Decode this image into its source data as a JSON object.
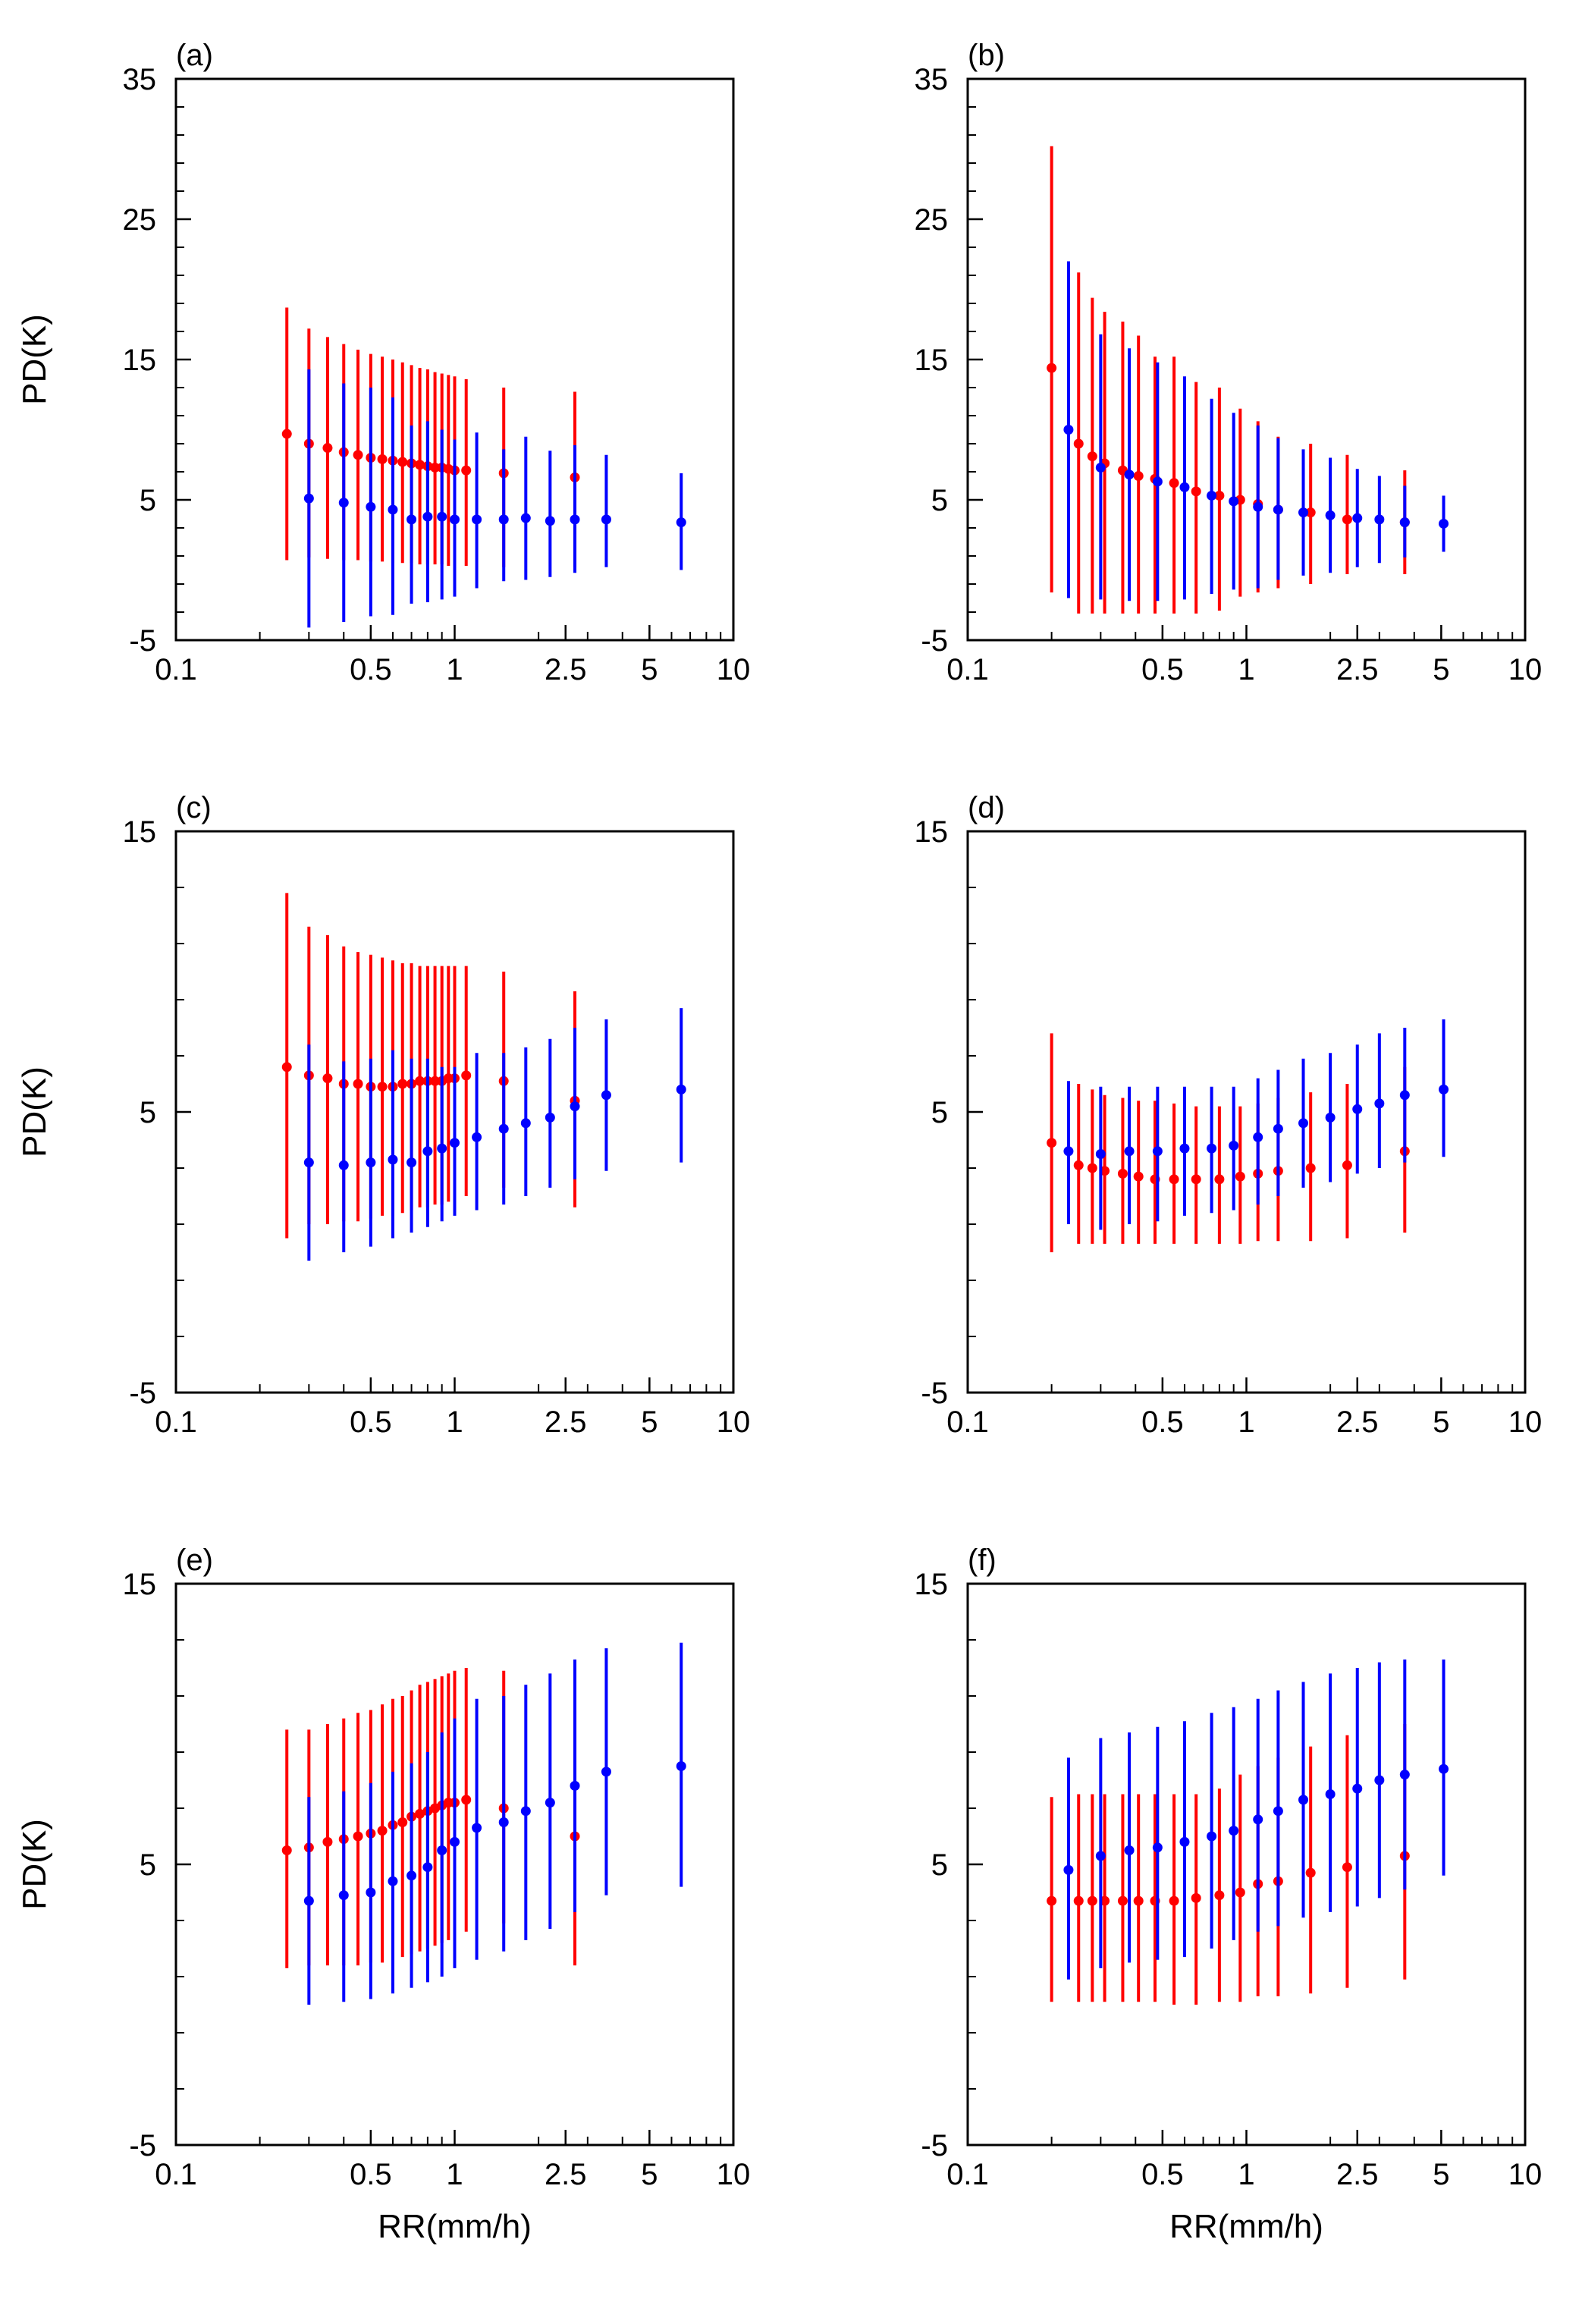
{
  "chart_data": [
    {
      "type": "errorbar",
      "panel_label": "(a)",
      "ylabel": "PD(K)",
      "xlabel": "",
      "xscale": "log",
      "xlim": [
        0.1,
        10
      ],
      "ylim": [
        -5,
        35
      ],
      "xtick_labels": [
        "0.1",
        "0.5",
        "1",
        "2.5",
        "5",
        "10"
      ],
      "ytick_labels": [
        "-5",
        "5",
        "15",
        "25",
        "35"
      ],
      "series": [
        {
          "name": "red",
          "color": "#ff0000",
          "x": [
            0.25,
            0.3,
            0.35,
            0.4,
            0.45,
            0.5,
            0.55,
            0.6,
            0.65,
            0.7,
            0.75,
            0.8,
            0.85,
            0.9,
            0.95,
            1.0,
            1.1,
            1.5,
            2.7
          ],
          "y": [
            9.7,
            9.0,
            8.7,
            8.4,
            8.2,
            8.0,
            7.9,
            7.8,
            7.7,
            7.6,
            7.5,
            7.4,
            7.3,
            7.3,
            7.2,
            7.1,
            7.1,
            6.9,
            6.6
          ],
          "lo": [
            0.7,
            0.9,
            0.8,
            0.7,
            0.7,
            0.6,
            0.6,
            0.5,
            0.5,
            0.5,
            0.4,
            0.4,
            0.4,
            0.4,
            0.3,
            0.3,
            0.3,
            0.2,
            0.2
          ],
          "hi": [
            18.7,
            17.2,
            16.6,
            16.1,
            15.7,
            15.4,
            15.2,
            15.0,
            14.8,
            14.6,
            14.4,
            14.3,
            14.1,
            14.0,
            13.9,
            13.8,
            13.6,
            13.0,
            12.7
          ]
        },
        {
          "name": "blue",
          "color": "#0000ff",
          "x": [
            0.3,
            0.4,
            0.5,
            0.6,
            0.7,
            0.8,
            0.9,
            1.0,
            1.2,
            1.5,
            1.8,
            2.2,
            2.7,
            3.5,
            6.5
          ],
          "y": [
            5.1,
            4.8,
            4.5,
            4.3,
            3.6,
            3.8,
            3.8,
            3.6,
            3.6,
            3.6,
            3.7,
            3.5,
            3.6,
            3.6,
            3.4
          ],
          "lo": [
            -4.1,
            -3.7,
            -3.3,
            -3.2,
            -2.4,
            -2.3,
            -2.1,
            -1.9,
            -1.3,
            -0.8,
            -0.7,
            -0.5,
            -0.2,
            0.2,
            0.0
          ],
          "hi": [
            14.3,
            13.3,
            13.0,
            12.3,
            10.3,
            10.6,
            10.0,
            9.3,
            9.8,
            8.6,
            9.5,
            8.5,
            8.9,
            8.2,
            6.9
          ]
        }
      ]
    },
    {
      "type": "errorbar",
      "panel_label": "(b)",
      "ylabel": "",
      "xlabel": "",
      "xscale": "log",
      "xlim": [
        0.1,
        10
      ],
      "ylim": [
        -5,
        35
      ],
      "xtick_labels": [
        "0.1",
        "0.5",
        "1",
        "2.5",
        "5",
        "10"
      ],
      "ytick_labels": [
        "-5",
        "5",
        "15",
        "25",
        "35"
      ],
      "series": [
        {
          "name": "red",
          "color": "#ff0000",
          "x": [
            0.2,
            0.25,
            0.28,
            0.31,
            0.36,
            0.41,
            0.47,
            0.55,
            0.66,
            0.8,
            0.95,
            1.1,
            1.3,
            1.7,
            2.3,
            3.7
          ],
          "y": [
            14.4,
            9.0,
            8.1,
            7.6,
            7.1,
            6.7,
            6.5,
            6.2,
            5.6,
            5.3,
            5.0,
            4.7,
            4.3,
            4.1,
            3.6,
            3.4
          ],
          "lo": [
            -1.6,
            -3.1,
            -3.1,
            -3.1,
            -3.1,
            -3.1,
            -3.1,
            -3.1,
            -3.1,
            -2.9,
            -1.9,
            -1.6,
            -1.3,
            -1.0,
            -0.3,
            -0.3
          ],
          "hi": [
            30.2,
            21.2,
            19.4,
            18.4,
            17.7,
            16.7,
            15.2,
            15.2,
            13.4,
            13.0,
            11.5,
            10.6,
            9.5,
            9.0,
            8.2,
            7.1
          ]
        },
        {
          "name": "blue",
          "color": "#0000ff",
          "x": [
            0.23,
            0.3,
            0.38,
            0.48,
            0.6,
            0.75,
            0.9,
            1.1,
            1.3,
            1.6,
            2.0,
            2.5,
            3.0,
            3.7,
            5.1
          ],
          "y": [
            10.0,
            7.3,
            6.8,
            6.3,
            5.9,
            5.3,
            4.9,
            4.5,
            4.3,
            4.1,
            3.9,
            3.7,
            3.6,
            3.4,
            3.3
          ],
          "lo": [
            -2.0,
            -2.1,
            -2.2,
            -2.2,
            -2.1,
            -1.7,
            -1.4,
            -1.3,
            -0.7,
            -0.4,
            -0.2,
            0.2,
            0.5,
            0.9,
            1.3
          ],
          "hi": [
            22.0,
            16.8,
            15.8,
            14.8,
            13.8,
            12.2,
            11.2,
            10.3,
            9.4,
            8.6,
            8.0,
            7.2,
            6.7,
            6.0,
            5.3
          ]
        }
      ]
    },
    {
      "type": "errorbar",
      "panel_label": "(c)",
      "ylabel": "PD(K)",
      "xlabel": "",
      "xscale": "log",
      "xlim": [
        0.1,
        10
      ],
      "ylim": [
        -5,
        15
      ],
      "xtick_labels": [
        "0.1",
        "0.5",
        "1",
        "2.5",
        "5",
        "10"
      ],
      "ytick_labels": [
        "-5",
        "5",
        "15"
      ],
      "series": [
        {
          "name": "red",
          "color": "#ff0000",
          "x": [
            0.25,
            0.3,
            0.35,
            0.4,
            0.45,
            0.5,
            0.55,
            0.6,
            0.65,
            0.7,
            0.75,
            0.8,
            0.85,
            0.9,
            0.95,
            1.0,
            1.1,
            1.5,
            2.7
          ],
          "y": [
            6.6,
            6.3,
            6.2,
            6.0,
            6.0,
            5.9,
            5.9,
            5.9,
            6.0,
            6.0,
            6.1,
            6.1,
            6.1,
            6.1,
            6.2,
            6.2,
            6.3,
            6.1,
            5.4
          ],
          "lo": [
            0.5,
            1.0,
            1.0,
            1.1,
            1.1,
            1.2,
            1.3,
            1.3,
            1.4,
            1.5,
            1.6,
            1.6,
            1.7,
            1.7,
            1.8,
            1.8,
            2.0,
            2.3,
            1.6
          ],
          "hi": [
            12.8,
            11.6,
            11.3,
            10.9,
            10.7,
            10.6,
            10.5,
            10.4,
            10.3,
            10.3,
            10.2,
            10.2,
            10.2,
            10.2,
            10.2,
            10.2,
            10.2,
            10.0,
            9.3
          ]
        },
        {
          "name": "blue",
          "color": "#0000ff",
          "x": [
            0.3,
            0.4,
            0.5,
            0.6,
            0.7,
            0.8,
            0.9,
            1.0,
            1.2,
            1.5,
            1.8,
            2.2,
            2.7,
            3.5,
            6.5
          ],
          "y": [
            3.2,
            3.1,
            3.2,
            3.3,
            3.2,
            3.6,
            3.7,
            3.9,
            4.1,
            4.4,
            4.6,
            4.8,
            5.2,
            5.6,
            5.8
          ],
          "lo": [
            -0.3,
            0.0,
            0.2,
            0.5,
            0.7,
            0.9,
            1.1,
            1.3,
            1.5,
            1.7,
            2.0,
            2.3,
            2.6,
            2.9,
            3.2
          ],
          "hi": [
            7.4,
            6.8,
            6.9,
            7.2,
            6.9,
            6.9,
            6.6,
            6.6,
            7.1,
            7.1,
            7.3,
            7.6,
            8.0,
            8.3,
            8.7
          ]
        }
      ]
    },
    {
      "type": "errorbar",
      "panel_label": "(d)",
      "ylabel": "",
      "xlabel": "",
      "xscale": "log",
      "xlim": [
        0.1,
        10
      ],
      "ylim": [
        -5,
        15
      ],
      "xtick_labels": [
        "0.1",
        "0.5",
        "1",
        "2.5",
        "5",
        "10"
      ],
      "ytick_labels": [
        "-5",
        "5",
        "15"
      ],
      "series": [
        {
          "name": "red",
          "color": "#ff0000",
          "x": [
            0.2,
            0.25,
            0.28,
            0.31,
            0.36,
            0.41,
            0.47,
            0.55,
            0.66,
            0.8,
            0.95,
            1.1,
            1.3,
            1.7,
            2.3,
            3.7
          ],
          "y": [
            3.9,
            3.1,
            3.0,
            2.9,
            2.8,
            2.7,
            2.6,
            2.6,
            2.6,
            2.6,
            2.7,
            2.8,
            2.9,
            3.0,
            3.1,
            3.6
          ],
          "lo": [
            0.0,
            0.3,
            0.3,
            0.3,
            0.3,
            0.3,
            0.3,
            0.3,
            0.3,
            0.3,
            0.3,
            0.4,
            0.4,
            0.4,
            0.5,
            0.7
          ],
          "hi": [
            7.8,
            6.0,
            5.8,
            5.6,
            5.5,
            5.4,
            5.4,
            5.3,
            5.2,
            5.2,
            5.2,
            5.3,
            5.5,
            5.7,
            6.0,
            6.6
          ]
        },
        {
          "name": "blue",
          "color": "#0000ff",
          "x": [
            0.23,
            0.3,
            0.38,
            0.48,
            0.6,
            0.75,
            0.9,
            1.1,
            1.3,
            1.6,
            2.0,
            2.5,
            3.0,
            3.7,
            5.1
          ],
          "y": [
            3.6,
            3.5,
            3.6,
            3.6,
            3.7,
            3.7,
            3.8,
            4.1,
            4.4,
            4.6,
            4.8,
            5.1,
            5.3,
            5.6,
            5.8
          ],
          "lo": [
            1.0,
            0.8,
            1.0,
            1.1,
            1.3,
            1.4,
            1.5,
            1.7,
            2.0,
            2.3,
            2.5,
            2.8,
            3.0,
            3.2,
            3.4
          ],
          "hi": [
            6.1,
            5.9,
            5.9,
            5.9,
            5.9,
            5.9,
            5.9,
            6.2,
            6.5,
            6.9,
            7.1,
            7.4,
            7.8,
            8.0,
            8.3
          ]
        }
      ]
    },
    {
      "type": "errorbar",
      "panel_label": "(e)",
      "ylabel": "PD(K)",
      "xlabel": "RR(mm/h)",
      "xscale": "log",
      "xlim": [
        0.1,
        10
      ],
      "ylim": [
        -5,
        15
      ],
      "xtick_labels": [
        "0.1",
        "0.5",
        "1",
        "2.5",
        "5",
        "10"
      ],
      "ytick_labels": [
        "-5",
        "5",
        "15"
      ],
      "series": [
        {
          "name": "red",
          "color": "#ff0000",
          "x": [
            0.25,
            0.3,
            0.35,
            0.4,
            0.45,
            0.5,
            0.55,
            0.6,
            0.65,
            0.7,
            0.75,
            0.8,
            0.85,
            0.9,
            0.95,
            1.0,
            1.1,
            1.5,
            2.7
          ],
          "y": [
            5.5,
            5.6,
            5.8,
            5.9,
            6.0,
            6.1,
            6.2,
            6.4,
            6.5,
            6.7,
            6.8,
            6.9,
            7.0,
            7.1,
            7.2,
            7.2,
            7.3,
            7.0,
            6.0
          ],
          "lo": [
            1.3,
            1.4,
            1.4,
            1.4,
            1.4,
            1.5,
            1.5,
            1.6,
            1.7,
            1.8,
            1.9,
            2.0,
            2.1,
            2.2,
            2.3,
            2.4,
            2.6,
            2.9,
            1.4
          ],
          "hi": [
            9.8,
            9.8,
            10.0,
            10.2,
            10.4,
            10.5,
            10.7,
            10.9,
            11.0,
            11.2,
            11.4,
            11.5,
            11.6,
            11.7,
            11.8,
            11.9,
            12.0,
            11.9,
            10.5
          ]
        },
        {
          "name": "blue",
          "color": "#0000ff",
          "x": [
            0.3,
            0.4,
            0.5,
            0.6,
            0.7,
            0.8,
            0.9,
            1.0,
            1.2,
            1.5,
            1.8,
            2.2,
            2.7,
            3.5,
            6.5
          ],
          "y": [
            3.7,
            3.9,
            4.0,
            4.4,
            4.6,
            4.9,
            5.5,
            5.8,
            6.3,
            6.5,
            6.9,
            7.2,
            7.8,
            8.3,
            8.5
          ],
          "lo": [
            0.0,
            0.1,
            0.2,
            0.4,
            0.6,
            0.8,
            1.0,
            1.3,
            1.6,
            1.9,
            2.3,
            2.7,
            3.3,
            3.9,
            4.2
          ],
          "hi": [
            7.4,
            7.6,
            7.9,
            8.3,
            8.6,
            9.0,
            9.7,
            10.2,
            10.9,
            11.0,
            11.4,
            11.8,
            12.3,
            12.7,
            12.9
          ]
        }
      ]
    },
    {
      "type": "errorbar",
      "panel_label": "(f)",
      "ylabel": "",
      "xlabel": "RR(mm/h)",
      "xscale": "log",
      "xlim": [
        0.1,
        10
      ],
      "ylim": [
        -5,
        15
      ],
      "xtick_labels": [
        "0.1",
        "0.5",
        "1",
        "2.5",
        "5",
        "10"
      ],
      "ytick_labels": [
        "-5",
        "5",
        "15"
      ],
      "series": [
        {
          "name": "red",
          "color": "#ff0000",
          "x": [
            0.2,
            0.25,
            0.28,
            0.31,
            0.36,
            0.41,
            0.47,
            0.55,
            0.66,
            0.8,
            0.95,
            1.1,
            1.3,
            1.7,
            2.3,
            3.7
          ],
          "y": [
            3.7,
            3.7,
            3.7,
            3.7,
            3.7,
            3.7,
            3.7,
            3.7,
            3.8,
            3.9,
            4.0,
            4.3,
            4.4,
            4.7,
            4.9,
            5.3
          ],
          "lo": [
            0.1,
            0.1,
            0.1,
            0.1,
            0.1,
            0.1,
            0.1,
            0.0,
            0.0,
            0.1,
            0.1,
            0.3,
            0.3,
            0.4,
            0.6,
            0.9
          ],
          "hi": [
            7.4,
            7.5,
            7.5,
            7.5,
            7.5,
            7.5,
            7.5,
            7.5,
            7.5,
            7.7,
            8.2,
            8.5,
            8.8,
            9.2,
            9.6,
            10.0
          ]
        },
        {
          "name": "blue",
          "color": "#0000ff",
          "x": [
            0.23,
            0.3,
            0.38,
            0.48,
            0.6,
            0.75,
            0.9,
            1.1,
            1.3,
            1.6,
            2.0,
            2.5,
            3.0,
            3.7,
            5.1
          ],
          "y": [
            4.8,
            5.3,
            5.5,
            5.6,
            5.8,
            6.0,
            6.2,
            6.6,
            6.9,
            7.3,
            7.5,
            7.7,
            8.0,
            8.2,
            8.4
          ],
          "lo": [
            0.9,
            1.3,
            1.5,
            1.6,
            1.7,
            2.0,
            2.3,
            2.6,
            2.8,
            3.1,
            3.3,
            3.5,
            3.8,
            4.1,
            4.6
          ],
          "hi": [
            8.8,
            9.5,
            9.7,
            9.9,
            10.1,
            10.4,
            10.6,
            10.9,
            11.2,
            11.5,
            11.8,
            12.0,
            12.2,
            12.3,
            12.3
          ]
        }
      ]
    }
  ]
}
